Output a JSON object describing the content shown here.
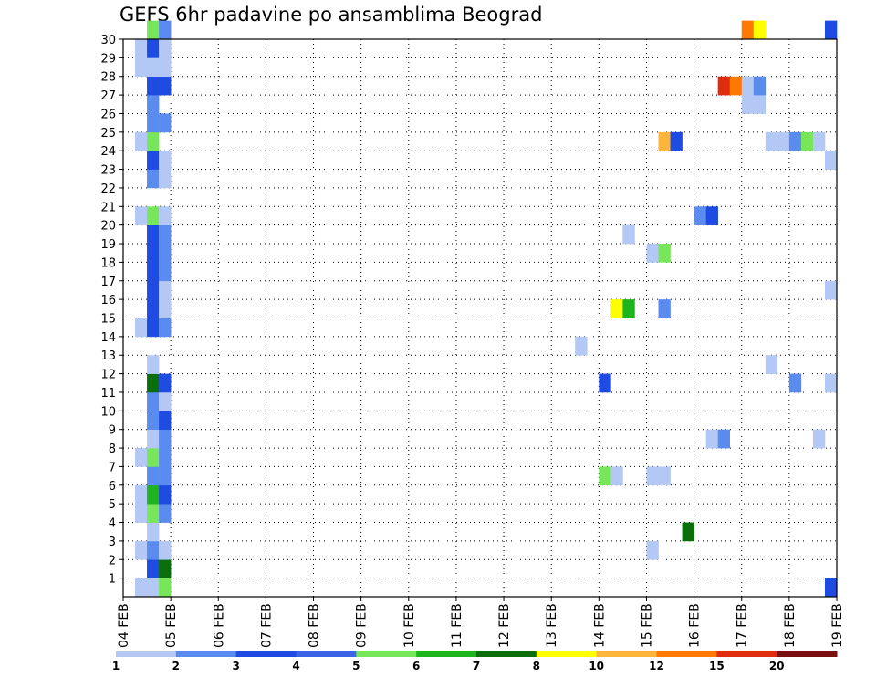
{
  "chart_data": {
    "type": "heatmap",
    "title": "GEFS 6hr padavine po ansamblima Beograd",
    "x_ticks": [
      "04 FEB",
      "05 FEB",
      "06 FEB",
      "07 FEB",
      "08 FEB",
      "09 FEB",
      "10 FEB",
      "11 FEB",
      "12 FEB",
      "13 FEB",
      "14 FEB",
      "15 FEB",
      "16 FEB",
      "17 FEB",
      "18 FEB",
      "19 FEB"
    ],
    "y_ticks": [
      "1",
      "2",
      "3",
      "4",
      "5",
      "6",
      "7",
      "8",
      "9",
      "10",
      "11",
      "12",
      "13",
      "14",
      "15",
      "16",
      "17",
      "18",
      "19",
      "20",
      "21",
      "22",
      "23",
      "24",
      "25",
      "26",
      "27",
      "28",
      "29",
      "30"
    ],
    "x_range": [
      "04 FEB 00Z",
      "19 FEB 00Z"
    ],
    "y_range": [
      0,
      30
    ],
    "time_step_hours": 6,
    "grid": "dotted",
    "legend": {
      "position": "bottom",
      "labels": [
        "1",
        "2",
        "3",
        "4",
        "5",
        "6",
        "7",
        "8",
        "10",
        "12",
        "15",
        "20"
      ],
      "colors": [
        "#b4c8f5",
        "#5a8cf0",
        "#1e4be1",
        "#3c64e6",
        "#78e65a",
        "#1eb41e",
        "#0a6e0a",
        "#ffff00",
        "#ffb43c",
        "#ff7800",
        "#e12d0f",
        "#7a0f0f"
      ]
    },
    "cells": [
      {
        "member": 0,
        "t": 1,
        "c": 0
      },
      {
        "member": 0,
        "t": 2,
        "c": 0
      },
      {
        "member": 0,
        "t": 3,
        "c": 4
      },
      {
        "member": 0,
        "t": 59,
        "c": 2
      },
      {
        "member": 1,
        "t": 2,
        "c": 2
      },
      {
        "member": 1,
        "t": 3,
        "c": 6
      },
      {
        "member": 2,
        "t": 1,
        "c": 0
      },
      {
        "member": 2,
        "t": 2,
        "c": 1
      },
      {
        "member": 2,
        "t": 3,
        "c": 0
      },
      {
        "member": 2,
        "t": 44,
        "c": 0
      },
      {
        "member": 3,
        "t": 2,
        "c": 0
      },
      {
        "member": 3,
        "t": 47,
        "c": 6
      },
      {
        "member": 4,
        "t": 1,
        "c": 0
      },
      {
        "member": 4,
        "t": 2,
        "c": 4
      },
      {
        "member": 4,
        "t": 3,
        "c": 1
      },
      {
        "member": 5,
        "t": 1,
        "c": 0
      },
      {
        "member": 5,
        "t": 2,
        "c": 5
      },
      {
        "member": 5,
        "t": 3,
        "c": 2
      },
      {
        "member": 6,
        "t": 2,
        "c": 1
      },
      {
        "member": 6,
        "t": 3,
        "c": 1
      },
      {
        "member": 6,
        "t": 40,
        "c": 4
      },
      {
        "member": 6,
        "t": 41,
        "c": 0
      },
      {
        "member": 6,
        "t": 44,
        "c": 0
      },
      {
        "member": 6,
        "t": 45,
        "c": 0
      },
      {
        "member": 7,
        "t": 1,
        "c": 0
      },
      {
        "member": 7,
        "t": 2,
        "c": 4
      },
      {
        "member": 7,
        "t": 3,
        "c": 1
      },
      {
        "member": 8,
        "t": 2,
        "c": 0
      },
      {
        "member": 8,
        "t": 3,
        "c": 1
      },
      {
        "member": 8,
        "t": 49,
        "c": 0
      },
      {
        "member": 8,
        "t": 50,
        "c": 1
      },
      {
        "member": 8,
        "t": 58,
        "c": 0
      },
      {
        "member": 9,
        "t": 2,
        "c": 1
      },
      {
        "member": 9,
        "t": 3,
        "c": 2
      },
      {
        "member": 10,
        "t": 2,
        "c": 1
      },
      {
        "member": 10,
        "t": 3,
        "c": 0
      },
      {
        "member": 11,
        "t": 2,
        "c": 6
      },
      {
        "member": 11,
        "t": 3,
        "c": 2
      },
      {
        "member": 11,
        "t": 40,
        "c": 2
      },
      {
        "member": 11,
        "t": 56,
        "c": 1
      },
      {
        "member": 11,
        "t": 59,
        "c": 0
      },
      {
        "member": 12,
        "t": 2,
        "c": 0
      },
      {
        "member": 12,
        "t": 54,
        "c": 0
      },
      {
        "member": 13,
        "t": 38,
        "c": 0
      },
      {
        "member": 14,
        "t": 1,
        "c": 0
      },
      {
        "member": 14,
        "t": 2,
        "c": 2
      },
      {
        "member": 14,
        "t": 3,
        "c": 1
      },
      {
        "member": 15,
        "t": 2,
        "c": 2
      },
      {
        "member": 15,
        "t": 3,
        "c": 0
      },
      {
        "member": 15,
        "t": 41,
        "c": 7
      },
      {
        "member": 15,
        "t": 42,
        "c": 5
      },
      {
        "member": 15,
        "t": 45,
        "c": 1
      },
      {
        "member": 16,
        "t": 2,
        "c": 2
      },
      {
        "member": 16,
        "t": 3,
        "c": 0
      },
      {
        "member": 16,
        "t": 59,
        "c": 0
      },
      {
        "member": 17,
        "t": 2,
        "c": 2
      },
      {
        "member": 17,
        "t": 3,
        "c": 1
      },
      {
        "member": 18,
        "t": 2,
        "c": 2
      },
      {
        "member": 18,
        "t": 3,
        "c": 1
      },
      {
        "member": 18,
        "t": 44,
        "c": 0
      },
      {
        "member": 18,
        "t": 45,
        "c": 4
      },
      {
        "member": 19,
        "t": 2,
        "c": 2
      },
      {
        "member": 19,
        "t": 3,
        "c": 1
      },
      {
        "member": 19,
        "t": 42,
        "c": 0
      },
      {
        "member": 20,
        "t": 1,
        "c": 0
      },
      {
        "member": 20,
        "t": 2,
        "c": 4
      },
      {
        "member": 20,
        "t": 3,
        "c": 0
      },
      {
        "member": 20,
        "t": 48,
        "c": 1
      },
      {
        "member": 20,
        "t": 49,
        "c": 2
      },
      {
        "member": 22,
        "t": 2,
        "c": 1
      },
      {
        "member": 22,
        "t": 3,
        "c": 0
      },
      {
        "member": 23,
        "t": 2,
        "c": 2
      },
      {
        "member": 23,
        "t": 3,
        "c": 0
      },
      {
        "member": 23,
        "t": 59,
        "c": 0
      },
      {
        "member": 24,
        "t": 1,
        "c": 0
      },
      {
        "member": 24,
        "t": 2,
        "c": 4
      },
      {
        "member": 24,
        "t": 45,
        "c": 8
      },
      {
        "member": 24,
        "t": 46,
        "c": 2
      },
      {
        "member": 24,
        "t": 54,
        "c": 0
      },
      {
        "member": 24,
        "t": 55,
        "c": 0
      },
      {
        "member": 24,
        "t": 56,
        "c": 1
      },
      {
        "member": 24,
        "t": 57,
        "c": 4
      },
      {
        "member": 24,
        "t": 58,
        "c": 0
      },
      {
        "member": 25,
        "t": 2,
        "c": 1
      },
      {
        "member": 25,
        "t": 3,
        "c": 1
      },
      {
        "member": 26,
        "t": 2,
        "c": 1
      },
      {
        "member": 26,
        "t": 52,
        "c": 0
      },
      {
        "member": 26,
        "t": 53,
        "c": 0
      },
      {
        "member": 27,
        "t": 2,
        "c": 2
      },
      {
        "member": 27,
        "t": 3,
        "c": 2
      },
      {
        "member": 27,
        "t": 50,
        "c": 10
      },
      {
        "member": 27,
        "t": 51,
        "c": 9
      },
      {
        "member": 27,
        "t": 52,
        "c": 0
      },
      {
        "member": 27,
        "t": 53,
        "c": 1
      },
      {
        "member": 28,
        "t": 1,
        "c": 0
      },
      {
        "member": 28,
        "t": 2,
        "c": 0
      },
      {
        "member": 28,
        "t": 3,
        "c": 0
      },
      {
        "member": 29,
        "t": 1,
        "c": 0
      },
      {
        "member": 29,
        "t": 2,
        "c": 2
      },
      {
        "member": 29,
        "t": 3,
        "c": 0
      },
      {
        "member": 30,
        "t": 2,
        "c": 4
      },
      {
        "member": 30,
        "t": 3,
        "c": 1
      },
      {
        "member": 30,
        "t": 52,
        "c": 9
      },
      {
        "member": 30,
        "t": 53,
        "c": 7
      },
      {
        "member": 30,
        "t": 59,
        "c": 2
      }
    ]
  }
}
